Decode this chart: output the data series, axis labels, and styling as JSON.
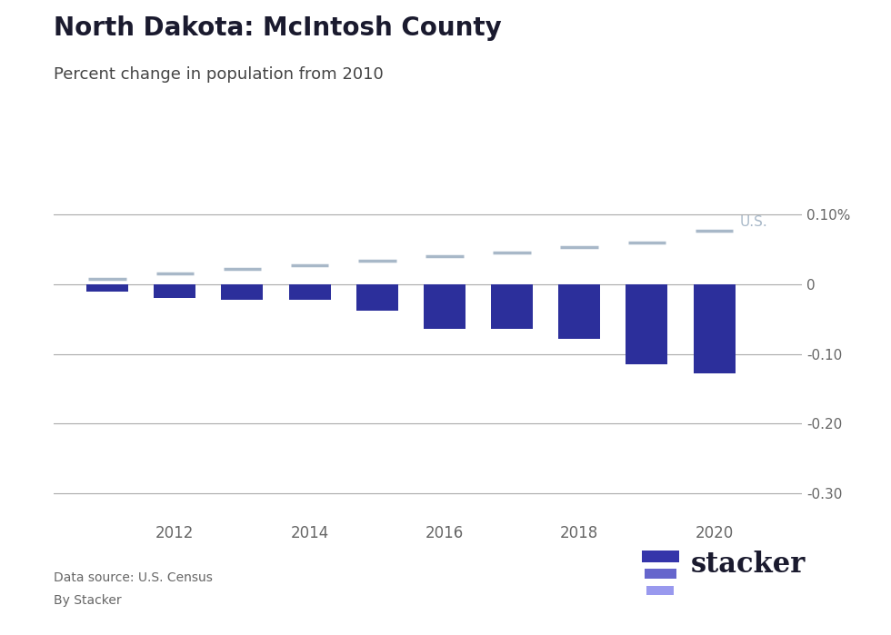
{
  "title": "North Dakota: McIntosh County",
  "subtitle": "Percent change in population from 2010",
  "years": [
    2011,
    2012,
    2013,
    2014,
    2015,
    2016,
    2017,
    2018,
    2019,
    2020
  ],
  "county_values": [
    -0.01,
    -0.02,
    -0.022,
    -0.022,
    -0.038,
    -0.064,
    -0.064,
    -0.079,
    -0.115,
    -0.1286
  ],
  "us_values": [
    0.008,
    0.016,
    0.022,
    0.028,
    0.034,
    0.04,
    0.046,
    0.053,
    0.06,
    0.077
  ],
  "bar_color": "#2C2F9B",
  "us_line_color": "#A8B8C8",
  "us_label_color": "#A8B8C8",
  "background_color": "#FFFFFF",
  "ytick_labels": [
    "0.10%",
    "0",
    "-0.10",
    "-0.20",
    "-0.30"
  ],
  "ytick_values": [
    0.1,
    0.0,
    -0.1,
    -0.2,
    -0.3
  ],
  "ylim": [
    -0.34,
    0.135
  ],
  "xlim": [
    2010.2,
    2021.3
  ],
  "source_text": "Data source: U.S. Census",
  "credit_text": "By Stacker",
  "title_color": "#1a1a2e",
  "subtitle_color": "#444444",
  "tick_color": "#666666",
  "grid_color": "#AAAAAA",
  "stacker_color": "#1a1a2e",
  "logo_bar_colors": [
    "#3535aa",
    "#6666cc",
    "#9999ee"
  ]
}
